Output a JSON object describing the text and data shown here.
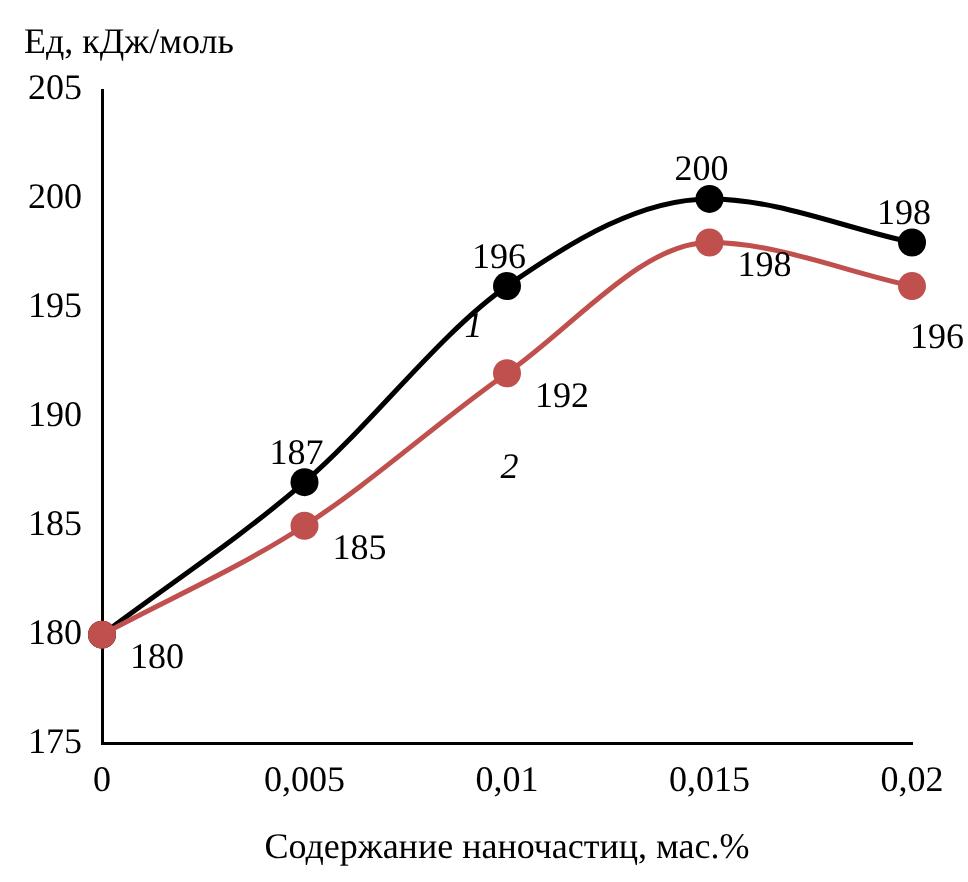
{
  "chart_data": {
    "type": "line",
    "xlabel": "Содержание наночастиц, мас.%",
    "ylabel": "Ед, кДж/моль",
    "categories": [
      "0",
      "0,005",
      "0,01",
      "0,015",
      "0,02"
    ],
    "series": [
      {
        "name": "1",
        "color": "#000000",
        "values": [
          180,
          187,
          196,
          200,
          198
        ],
        "value_labels": [
          null,
          "187",
          "196",
          "200",
          "198"
        ]
      },
      {
        "name": "2",
        "color": "#c0504d",
        "values": [
          180,
          185,
          192,
          198,
          196
        ],
        "value_labels": [
          "180",
          "185",
          "192",
          "198",
          "196"
        ]
      }
    ],
    "ylim": [
      175,
      205
    ],
    "yticks": [
      175,
      180,
      185,
      190,
      195,
      200,
      205
    ],
    "grid": false,
    "legend": false,
    "marker": "circle",
    "line_style": "solid"
  }
}
